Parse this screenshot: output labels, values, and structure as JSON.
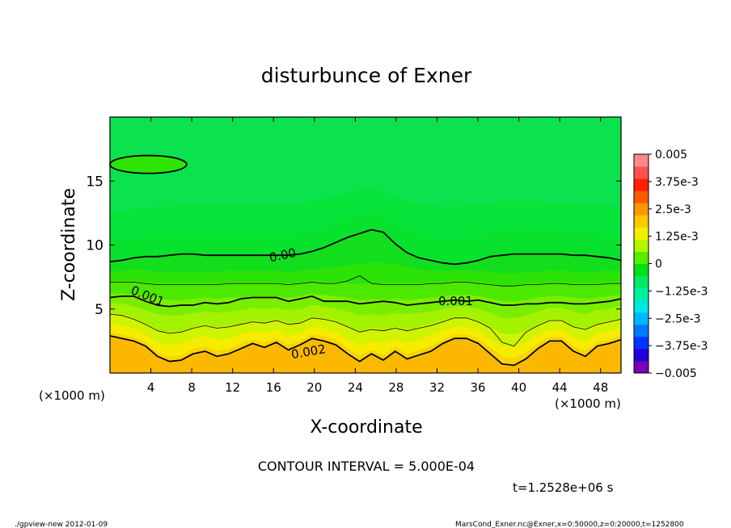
{
  "chart_data": {
    "type": "heatmap",
    "title": "disturbunce of Exner",
    "xlabel": "X-coordinate",
    "ylabel": "Z-coordinate",
    "x_unit": "(×1000 m)",
    "xlim": [
      0,
      50
    ],
    "ylim": [
      0,
      20
    ],
    "x_ticks": [
      "4",
      "8",
      "12",
      "16",
      "20",
      "24",
      "28",
      "32",
      "36",
      "40",
      "44",
      "48"
    ],
    "y_ticks": [
      "5",
      "10",
      "15"
    ],
    "contour_interval_text": "CONTOUR INTERVAL = 5.000E-04",
    "time_text": "t=1.2528e+06 s",
    "colorbar": {
      "min": -0.005,
      "max": 0.005,
      "labels": [
        "0.005",
        "3.75e-3",
        "2.5e-3",
        "1.25e-3",
        "0",
        "−1.25e-3",
        "−2.5e-3",
        "−3.75e-3",
        "−0.005"
      ],
      "label_values": [
        0.005,
        0.00375,
        0.0025,
        0.00125,
        0,
        -0.00125,
        -0.0025,
        -0.00375,
        -0.005
      ],
      "colors": [
        "#7a00b8",
        "#1f00d6",
        "#0033ff",
        "#0077ff",
        "#00b7ff",
        "#00e6e0",
        "#00f0a0",
        "#00ea66",
        "#00e11a",
        "#55ee00",
        "#b6f500",
        "#f0f000",
        "#ffc800",
        "#ff9600",
        "#ff5a00",
        "#ff2000",
        "#ff5050",
        "#ff8888"
      ]
    },
    "contour_labels": [
      "0.00",
      "0.001",
      "0.001",
      "0.002"
    ],
    "field_bands": [
      {
        "level": 0.0025,
        "color": "#fcb800",
        "z": [
          2.8,
          2.6,
          2.4,
          2.0,
          1.2,
          0.8,
          0.9,
          1.4,
          1.6,
          1.2,
          1.4,
          1.8,
          2.2,
          1.9,
          2.3,
          1.7,
          2.1,
          2.6,
          2.4,
          2.1,
          1.4,
          0.8,
          1.4,
          0.9,
          1.6,
          1.0,
          1.3,
          1.6,
          2.2,
          2.6,
          2.6,
          2.2,
          1.4,
          0.6,
          0.5,
          1.0,
          1.8,
          2.4,
          2.4,
          1.6,
          1.2,
          2.0,
          2.2,
          2.5
        ]
      },
      {
        "level": 0.002,
        "color": "#fbd300",
        "z": [
          3.2,
          3.0,
          2.8,
          2.4,
          1.6,
          1.3,
          1.4,
          1.9,
          2.1,
          1.7,
          1.9,
          2.3,
          2.6,
          2.4,
          2.7,
          2.2,
          2.5,
          3.0,
          2.9,
          2.6,
          1.9,
          1.4,
          1.8,
          1.4,
          2.0,
          1.5,
          1.8,
          2.1,
          2.6,
          3.0,
          3.0,
          2.7,
          2.0,
          1.3,
          1.2,
          1.6,
          2.3,
          2.8,
          2.8,
          2.1,
          1.7,
          2.4,
          2.6,
          2.9
        ]
      },
      {
        "level": 0.00175,
        "color": "#f6ec00",
        "z": [
          3.9,
          3.7,
          3.5,
          3.0,
          2.4,
          2.2,
          2.3,
          2.7,
          2.9,
          2.6,
          2.7,
          3.0,
          3.3,
          3.1,
          3.4,
          2.9,
          3.1,
          3.6,
          3.5,
          3.2,
          2.7,
          2.2,
          2.5,
          2.3,
          2.7,
          2.3,
          2.6,
          2.9,
          3.3,
          3.6,
          3.6,
          3.3,
          2.7,
          2.1,
          2.0,
          2.4,
          3.0,
          3.4,
          3.4,
          2.8,
          2.5,
          3.1,
          3.3,
          3.5
        ]
      },
      {
        "level": 0.0015,
        "color": "#cff400",
        "z": [
          4.7,
          4.6,
          4.3,
          3.9,
          3.4,
          3.2,
          3.3,
          3.6,
          3.8,
          3.6,
          3.7,
          3.9,
          4.1,
          4.0,
          4.2,
          3.9,
          4.0,
          4.4,
          4.3,
          4.1,
          3.7,
          3.3,
          3.5,
          3.4,
          3.6,
          3.4,
          3.6,
          3.8,
          4.1,
          4.4,
          4.4,
          4.1,
          3.6,
          3.1,
          3.0,
          3.3,
          3.8,
          4.2,
          4.2,
          3.7,
          3.5,
          3.9,
          4.1,
          4.3
        ]
      },
      {
        "level": 0.00125,
        "color": "#a3f200",
        "z": [
          5.5,
          5.4,
          5.2,
          4.9,
          4.6,
          4.5,
          4.5,
          4.7,
          4.8,
          4.7,
          4.8,
          4.9,
          5.1,
          5.0,
          5.1,
          4.9,
          5.0,
          5.3,
          5.2,
          5.0,
          4.8,
          4.5,
          4.6,
          4.5,
          4.7,
          4.6,
          4.7,
          4.8,
          5.0,
          5.2,
          5.2,
          5.0,
          4.7,
          4.3,
          4.3,
          4.5,
          4.8,
          5.1,
          5.1,
          4.8,
          4.6,
          4.9,
          5.0,
          5.2
        ]
      },
      {
        "level": 0.001,
        "color": "#7aee00",
        "z": [
          6.2,
          6.2,
          6.1,
          5.9,
          5.8,
          5.7,
          5.7,
          5.8,
          5.9,
          5.8,
          5.9,
          5.9,
          6.0,
          6.0,
          6.0,
          5.9,
          6.0,
          6.2,
          6.1,
          6.0,
          5.9,
          5.7,
          5.8,
          5.7,
          5.8,
          5.7,
          5.8,
          5.9,
          6.0,
          6.1,
          6.1,
          6.0,
          5.8,
          5.6,
          5.6,
          5.7,
          5.9,
          6.0,
          6.0,
          5.9,
          5.8,
          5.9,
          6.0,
          6.1
        ]
      },
      {
        "level": 0.0005,
        "color": "#4de800",
        "z": [
          7.2,
          7.2,
          7.2,
          7.1,
          7.0,
          7.0,
          7.0,
          7.0,
          7.0,
          7.0,
          7.1,
          7.1,
          7.1,
          7.1,
          7.1,
          7.0,
          7.1,
          7.2,
          7.1,
          7.1,
          7.0,
          7.0,
          7.0,
          7.0,
          7.0,
          7.0,
          7.0,
          7.1,
          7.1,
          7.2,
          7.2,
          7.1,
          7.0,
          6.9,
          6.9,
          7.0,
          7.0,
          7.1,
          7.1,
          7.0,
          7.0,
          7.0,
          7.1,
          7.1
        ]
      },
      {
        "level": 0.00025,
        "color": "#2be306",
        "z": [
          7.9,
          8.0,
          8.1,
          8.0,
          7.9,
          7.9,
          7.9,
          7.9,
          7.9,
          7.9,
          8.0,
          8.0,
          8.0,
          8.0,
          8.0,
          7.9,
          8.0,
          8.1,
          8.2,
          8.3,
          8.4,
          8.5,
          8.6,
          8.6,
          8.5,
          8.3,
          8.1,
          8.0,
          8.0,
          8.0,
          8.0,
          8.0,
          7.9,
          7.8,
          7.8,
          7.9,
          7.9,
          8.0,
          8.0,
          7.9,
          7.9,
          7.9,
          8.0,
          8.0
        ]
      },
      {
        "level": 0.0,
        "color": "#12de1e",
        "z": [
          8.8,
          8.9,
          9.0,
          9.1,
          9.1,
          9.2,
          9.2,
          9.2,
          9.2,
          9.2,
          9.2,
          9.2,
          9.2,
          9.2,
          9.2,
          9.2,
          9.3,
          9.5,
          9.8,
          10.2,
          10.6,
          10.9,
          11.2,
          11.0,
          10.1,
          9.4,
          9.0,
          8.8,
          8.6,
          8.5,
          8.6,
          8.8,
          9.1,
          9.2,
          9.3,
          9.3,
          9.3,
          9.3,
          9.3,
          9.2,
          9.2,
          9.1,
          9.0,
          8.9
        ]
      },
      {
        "level": -0.00025,
        "color": "#08e22c",
        "z": [
          10.3,
          10.4,
          10.5,
          10.6,
          10.6,
          10.7,
          10.7,
          10.7,
          10.7,
          10.7,
          10.7,
          10.7,
          10.7,
          10.7,
          10.7,
          10.7,
          10.8,
          11.0,
          11.3,
          11.6,
          12.0,
          12.3,
          12.5,
          12.3,
          11.6,
          11.0,
          10.7,
          10.6,
          10.5,
          10.4,
          10.5,
          10.7,
          10.9,
          11.0,
          11.1,
          11.1,
          11.1,
          11.0,
          11.0,
          10.9,
          10.9,
          10.8,
          10.7,
          10.6
        ]
      },
      {
        "level": -0.0005,
        "color": "#06e43a",
        "z": [
          12.6,
          12.7,
          12.8,
          12.9,
          13.0,
          13.0,
          13.1,
          13.1,
          13.1,
          13.1,
          13.1,
          13.2,
          13.2,
          13.2,
          13.2,
          13.2,
          13.3,
          13.4,
          13.6,
          13.8,
          14.1,
          14.3,
          14.4,
          14.2,
          13.8,
          13.4,
          13.2,
          13.1,
          13.0,
          13.0,
          13.1,
          13.2,
          13.3,
          13.4,
          13.4,
          13.4,
          13.4,
          13.3,
          13.3,
          13.3,
          13.2,
          13.2,
          13.1,
          13.0
        ]
      }
    ],
    "contour_lines": [
      {
        "level": 0.002,
        "weight": "thick",
        "z": [
          2.9,
          2.7,
          2.5,
          2.1,
          1.3,
          0.9,
          1.0,
          1.5,
          1.7,
          1.3,
          1.5,
          1.9,
          2.3,
          2.0,
          2.4,
          1.8,
          2.2,
          2.7,
          2.5,
          2.2,
          1.5,
          0.9,
          1.5,
          1.0,
          1.7,
          1.1,
          1.4,
          1.7,
          2.3,
          2.7,
          2.7,
          2.3,
          1.5,
          0.7,
          0.6,
          1.1,
          1.9,
          2.5,
          2.5,
          1.7,
          1.3,
          2.1,
          2.3,
          2.6
        ]
      },
      {
        "level": 0.0015,
        "weight": "thin",
        "z": [
          4.6,
          4.5,
          4.2,
          3.8,
          3.3,
          3.1,
          3.2,
          3.5,
          3.7,
          3.5,
          3.6,
          3.8,
          4.0,
          3.9,
          4.1,
          3.8,
          3.9,
          4.3,
          4.2,
          4.0,
          3.6,
          3.2,
          3.4,
          3.3,
          3.5,
          3.3,
          3.5,
          3.7,
          4.0,
          4.3,
          4.3,
          4.0,
          3.5,
          2.4,
          2.1,
          3.2,
          3.7,
          4.1,
          4.1,
          3.6,
          3.4,
          3.8,
          4.0,
          4.2
        ]
      },
      {
        "level": 0.001,
        "weight": "thick",
        "z": [
          5.9,
          6.0,
          6.0,
          5.6,
          5.3,
          5.2,
          5.3,
          5.3,
          5.5,
          5.4,
          5.5,
          5.8,
          5.9,
          5.9,
          5.9,
          5.6,
          5.8,
          6.0,
          5.6,
          5.6,
          5.6,
          5.4,
          5.5,
          5.6,
          5.5,
          5.3,
          5.4,
          5.5,
          5.6,
          5.7,
          5.6,
          5.7,
          5.5,
          5.3,
          5.3,
          5.4,
          5.4,
          5.5,
          5.5,
          5.4,
          5.4,
          5.5,
          5.6,
          5.8
        ]
      },
      {
        "level": 0.0005,
        "weight": "thin",
        "z": [
          7.1,
          7.1,
          7.1,
          7.0,
          6.9,
          6.9,
          6.9,
          6.9,
          6.9,
          6.9,
          7.0,
          7.0,
          7.0,
          7.0,
          7.0,
          6.9,
          7.0,
          7.1,
          7.0,
          7.0,
          7.2,
          7.6,
          7.0,
          6.9,
          6.9,
          6.9,
          6.9,
          7.0,
          7.0,
          7.1,
          7.1,
          7.0,
          6.9,
          6.8,
          6.8,
          6.9,
          6.9,
          7.0,
          7.0,
          6.9,
          6.9,
          6.9,
          7.0,
          7.0
        ]
      },
      {
        "level": 0.0,
        "weight": "thick",
        "z": [
          8.7,
          8.8,
          9.0,
          9.1,
          9.1,
          9.2,
          9.3,
          9.3,
          9.2,
          9.2,
          9.2,
          9.2,
          9.2,
          9.2,
          9.2,
          9.2,
          9.3,
          9.5,
          9.8,
          10.2,
          10.6,
          10.9,
          11.2,
          11.0,
          10.1,
          9.4,
          9.0,
          8.8,
          8.6,
          8.5,
          8.6,
          8.8,
          9.1,
          9.2,
          9.3,
          9.3,
          9.3,
          9.3,
          9.3,
          9.2,
          9.2,
          9.1,
          9.0,
          8.8
        ]
      }
    ],
    "top_left_cell": {
      "level": 0.0,
      "x_range": [
        0,
        7.5
      ],
      "z_range": [
        15.6,
        17.0
      ]
    }
  },
  "footer": {
    "left": "./gpview-new  2012-01-09",
    "right": "MarsCond_Exner.nc@Exner,x=0:50000,z=0:20000,t=1252800"
  }
}
